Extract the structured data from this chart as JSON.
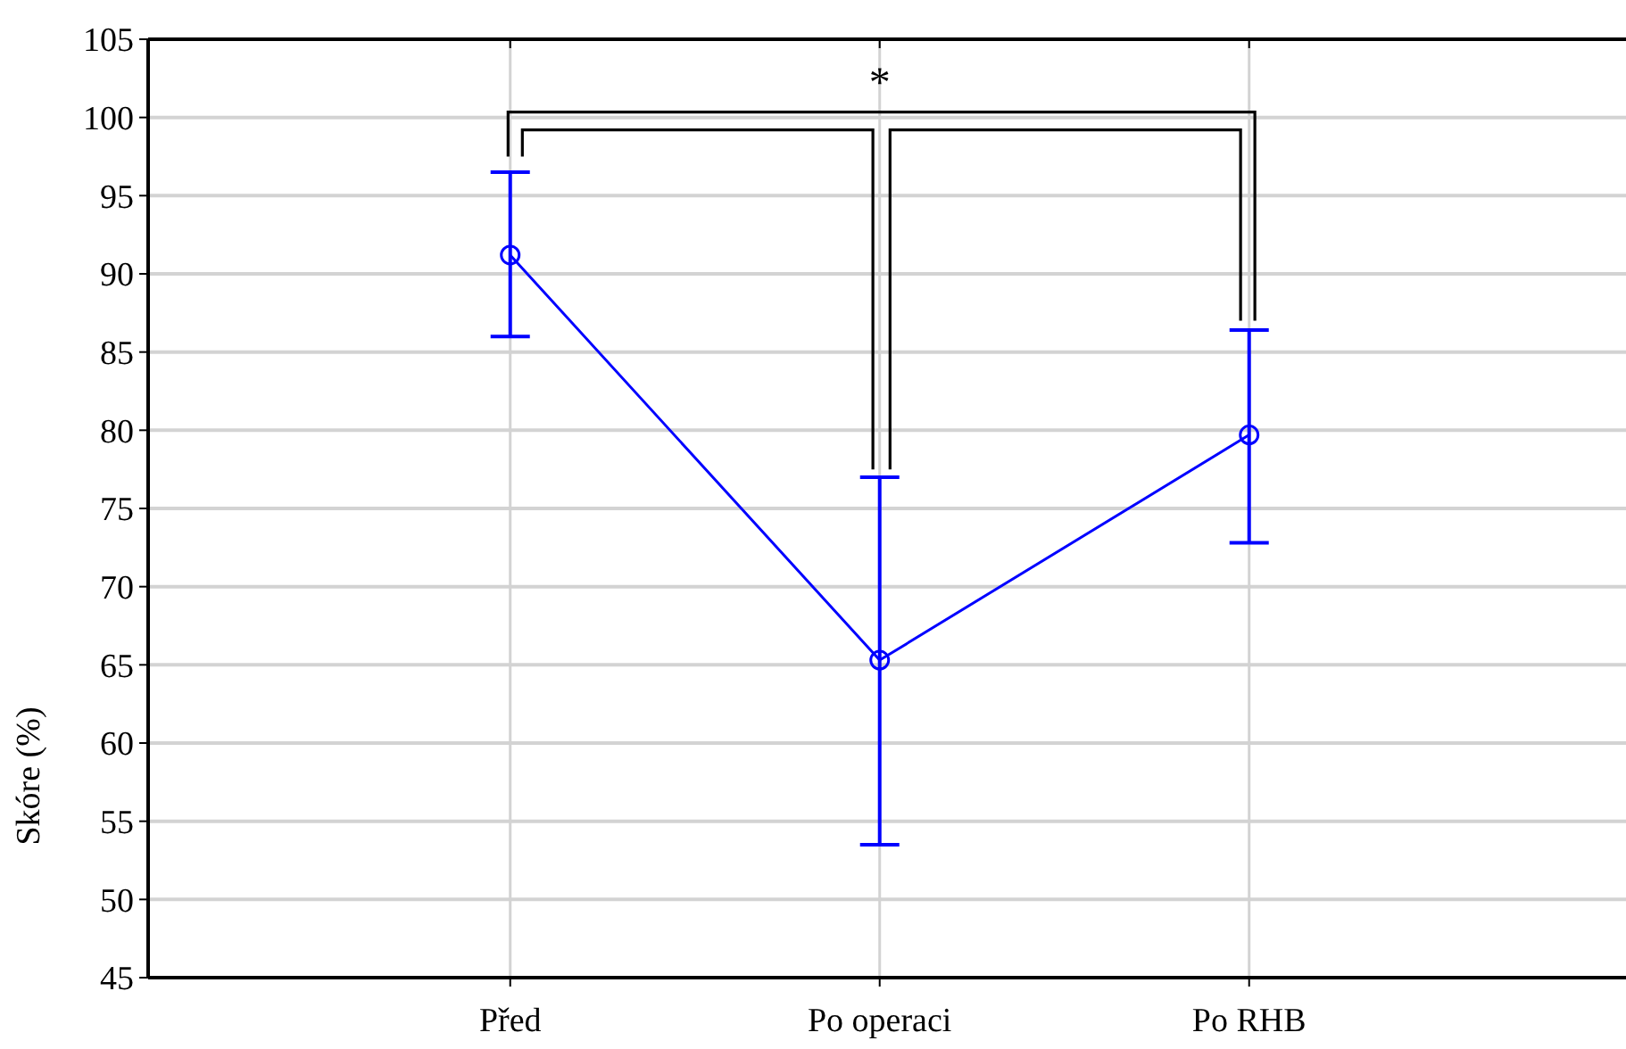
{
  "chart_data": {
    "type": "line",
    "ylabel": "Skóre (%)",
    "categories": [
      "Před",
      "Po operaci",
      "Po RHB"
    ],
    "series": [
      {
        "color": "#0000ff",
        "values": [
          91.2,
          65.3,
          79.7
        ],
        "errors": [
          [
            86,
            96.5
          ],
          [
            53.5,
            77
          ],
          [
            72.8,
            86.4
          ]
        ]
      }
    ],
    "ylim": [
      45,
      105
    ],
    "yticks": [
      45,
      50,
      55,
      60,
      65,
      70,
      75,
      80,
      85,
      90,
      95,
      100,
      105
    ],
    "grid": true,
    "marker": "circle",
    "line_style": "solid",
    "annotations": [
      "*"
    ]
  }
}
